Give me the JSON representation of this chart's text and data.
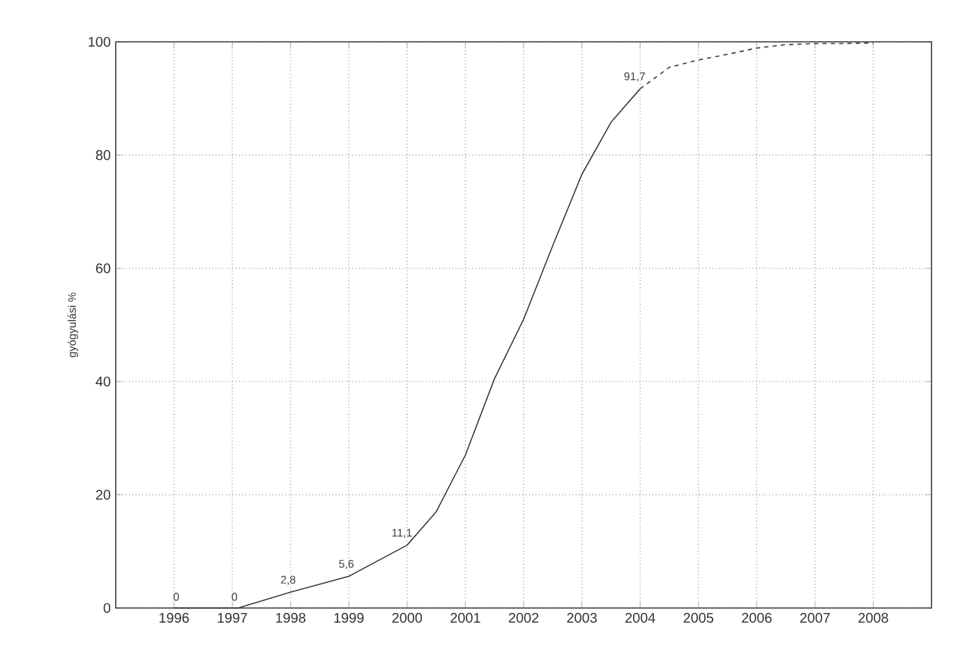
{
  "chart_data": {
    "type": "line",
    "ylabel": "gyógyulási %",
    "xlim": [
      1995,
      2009
    ],
    "xticks": [
      1996,
      1997,
      1998,
      1999,
      2000,
      2001,
      2002,
      2003,
      2004,
      2005,
      2006,
      2007,
      2008
    ],
    "ylim": [
      0,
      100
    ],
    "yticks": [
      0,
      20,
      40,
      60,
      80,
      100
    ],
    "grid": true,
    "series": [
      {
        "color": "#333333",
        "line_style": "solid",
        "x": [
          1996,
          1997,
          1997.1,
          1998,
          1999,
          2000,
          2000.5,
          2001,
          2001.5,
          2002,
          2002.5,
          2003,
          2003.5,
          2004
        ],
        "values": [
          0,
          0,
          0,
          2.8,
          5.6,
          11.1,
          17,
          27,
          40.5,
          51,
          64,
          76.6,
          85.8,
          91.7
        ],
        "value_labels": [
          "0",
          "0",
          null,
          "2,8",
          "5,6",
          "11,1",
          null,
          null,
          null,
          null,
          null,
          null,
          null,
          "91,7"
        ]
      },
      {
        "color": "#333333",
        "line_style": "dashed",
        "x": [
          2004,
          2004.5,
          2005,
          2005.5,
          2006,
          2006.5,
          2007,
          2007.5,
          2008
        ],
        "values": [
          91.7,
          95.5,
          96.8,
          97.8,
          98.9,
          99.5,
          99.7,
          99.7,
          99.8
        ]
      }
    ]
  }
}
